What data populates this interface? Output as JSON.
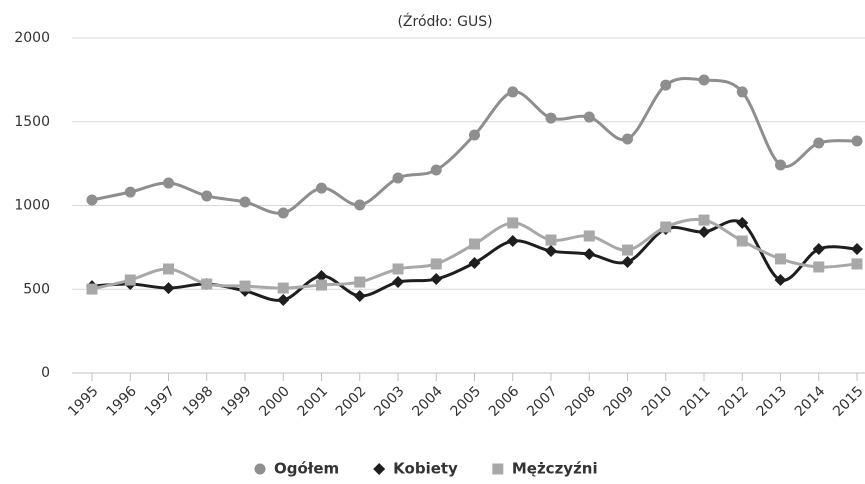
{
  "chart_data": {
    "type": "line",
    "title": "(Źródło: GUS)",
    "categories": [
      "1995",
      "1996",
      "1997",
      "1998",
      "1999",
      "2000",
      "2001",
      "2002",
      "2003",
      "2004",
      "2005",
      "2006",
      "2007",
      "2008",
      "2009",
      "2010",
      "2011",
      "2012",
      "2013",
      "2014",
      "2015"
    ],
    "series": [
      {
        "name": "Ogółem",
        "color": "#8e8e8e",
        "marker": "circle",
        "values": [
          1033,
          1080,
          1134,
          1057,
          1021,
          955,
          1104,
          1003,
          1164,
          1212,
          1421,
          1678,
          1522,
          1528,
          1397,
          1719,
          1749,
          1678,
          1242,
          1373,
          1385
        ]
      },
      {
        "name": "Kobiety",
        "color": "#1e1e1e",
        "marker": "diamond",
        "values": [
          519,
          531,
          507,
          531,
          490,
          436,
          579,
          460,
          543,
          561,
          657,
          788,
          728,
          710,
          663,
          860,
          842,
          896,
          555,
          740,
          740
        ]
      },
      {
        "name": "Mężczyźni",
        "color": "#a8a8a8",
        "marker": "square",
        "values": [
          501,
          555,
          621,
          531,
          519,
          507,
          525,
          543,
          621,
          651,
          770,
          896,
          794,
          818,
          734,
          872,
          913,
          788,
          681,
          633,
          651
        ]
      }
    ],
    "ylim": [
      0,
      2000
    ],
    "yticks": [
      0,
      500,
      1000,
      1500,
      2000
    ],
    "grid": true,
    "legend": "bottom"
  }
}
